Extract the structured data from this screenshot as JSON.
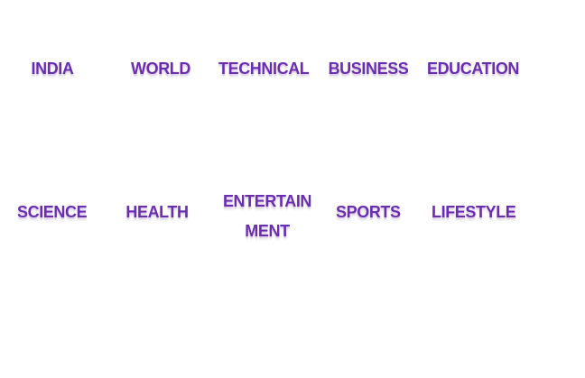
{
  "nav": {
    "row1": {
      "india": "INDIA",
      "world": "WORLD",
      "technical": "TECHNICAL",
      "business": "BUSINESS",
      "education": "EDUCATION"
    },
    "row2": {
      "science": "SCIENCE",
      "health": "HEALTH",
      "entertainment_line1": "ENTERTAIN",
      "entertainment_line2": "MENT",
      "sports": "SPORTS",
      "lifestyle": "LIFESTYLE"
    }
  },
  "colors": {
    "link_text": "#6a2db0",
    "background": "#ffffff"
  }
}
